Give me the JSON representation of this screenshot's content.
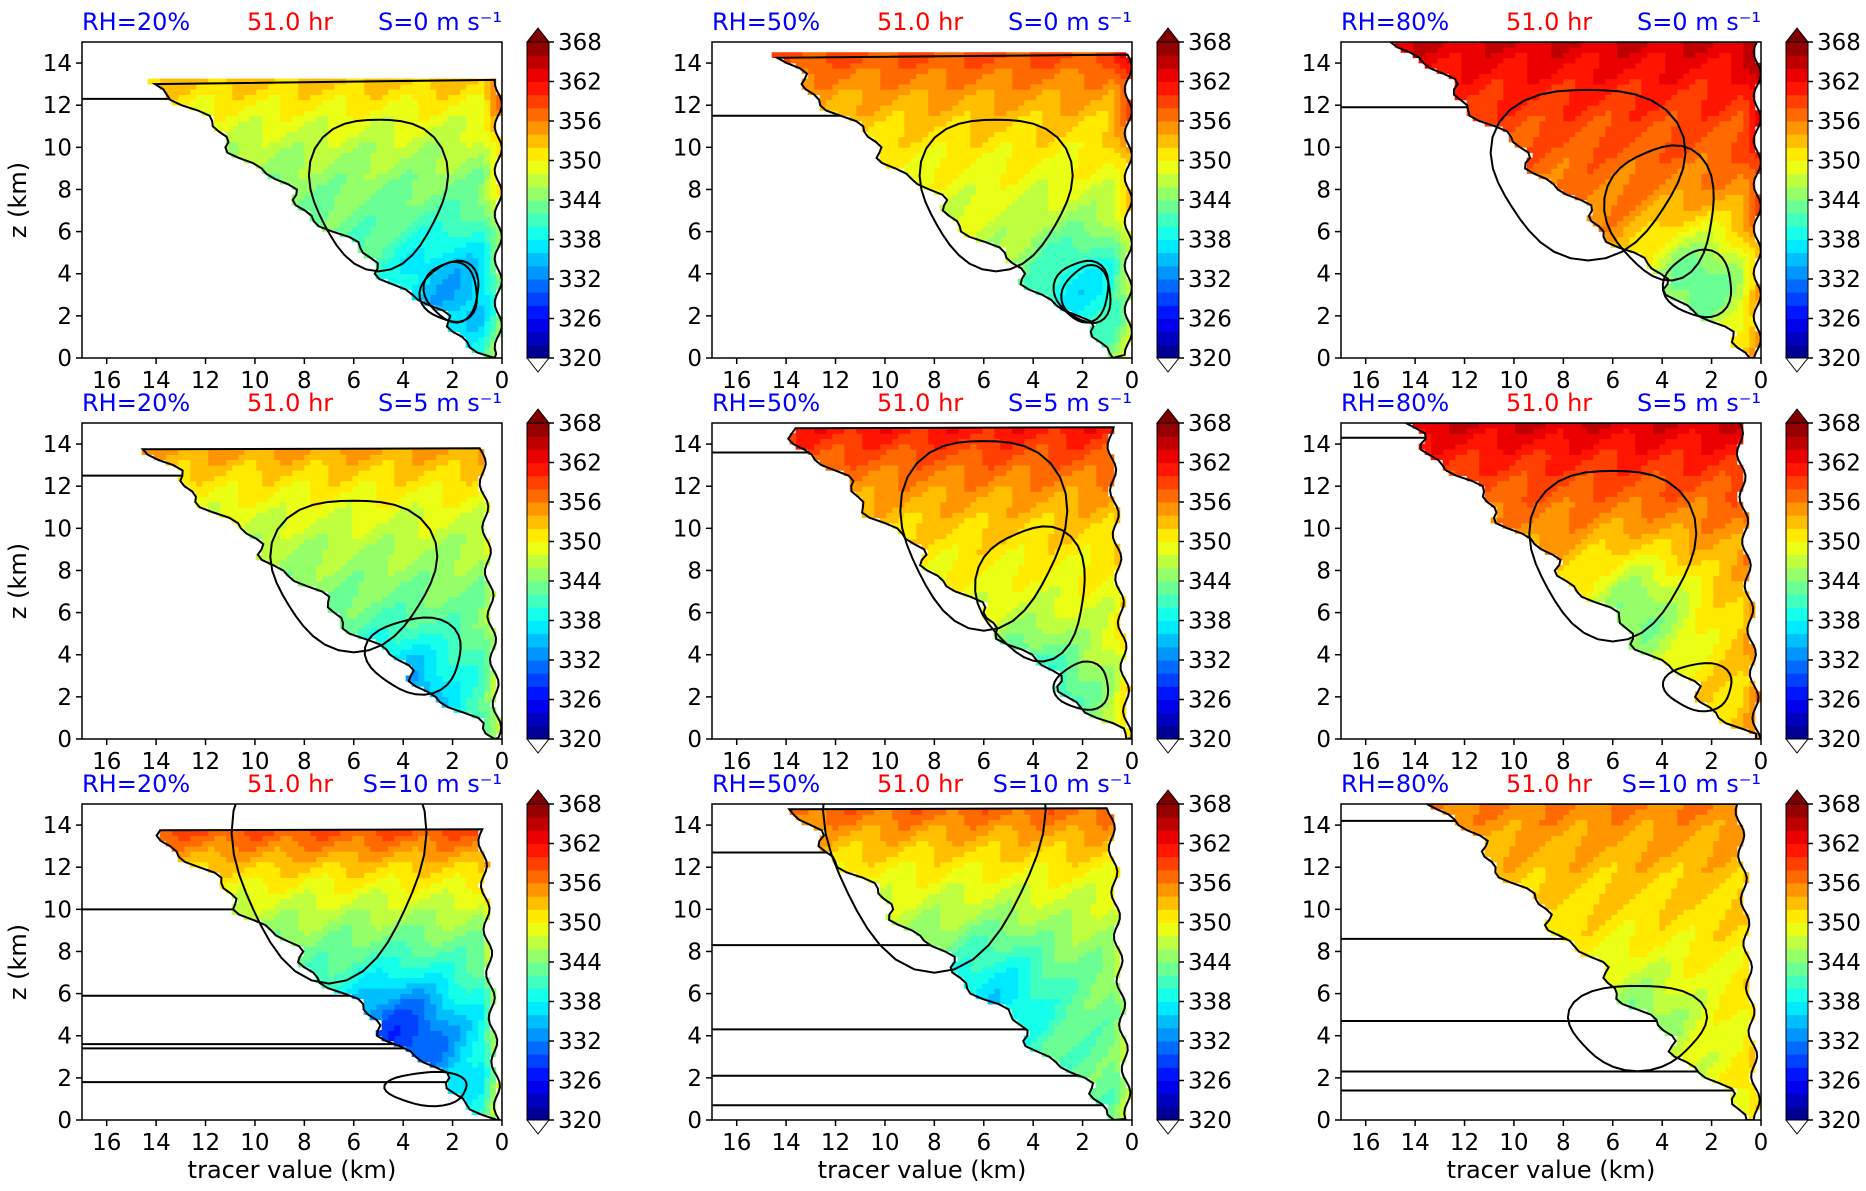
{
  "chart_data": {
    "type": "heatmap",
    "layout": {
      "rows": 3,
      "cols": 3
    },
    "xlabel": "tracer value (km)",
    "ylabel": "z (km)",
    "x_ticks": [
      "16",
      "14",
      "12",
      "10",
      "8",
      "6",
      "4",
      "2",
      "0"
    ],
    "y_ticks": [
      "0",
      "2",
      "4",
      "6",
      "8",
      "10",
      "12",
      "14"
    ],
    "xlim": [
      17,
      0
    ],
    "ylim": [
      0,
      15
    ],
    "x_inverted": true,
    "colorbar": {
      "ticks": [
        "320",
        "326",
        "332",
        "338",
        "344",
        "350",
        "356",
        "362",
        "368"
      ],
      "range": [
        320,
        368
      ],
      "extend": "both",
      "colormap": "jet"
    },
    "time_label": "51.0 hr",
    "colors": {
      "rh_label": "#0000ff",
      "time_label": "#ff0000",
      "shear_label": "#0000ff",
      "contour": "#000000"
    },
    "panels": [
      {
        "row": 0,
        "col": 0,
        "rh_label": "RH=20%",
        "time_label": "51.0 hr",
        "shear_label": "S=0 m s⁻¹",
        "rh": 20,
        "shear": 0,
        "min_tracer": 14.0,
        "base_theta": 342,
        "low_theta": 334,
        "top_theta": 358,
        "core": [
          2.0,
          3.2
        ],
        "cloud_top": 13.2,
        "contours": [
          [
            5.0,
            8.0
          ],
          [
            2.0,
            3.2
          ],
          [
            2.1,
            3.1
          ]
        ],
        "horiz_lines": [
          12.3
        ]
      },
      {
        "row": 0,
        "col": 1,
        "rh_label": "RH=50%",
        "time_label": "51.0 hr",
        "shear_label": "S=0 m s⁻¹",
        "rh": 50,
        "shear": 0,
        "min_tracer": 14.5,
        "base_theta": 347,
        "low_theta": 337,
        "top_theta": 360,
        "core": [
          2.0,
          3.2
        ],
        "cloud_top": 14.4,
        "contours": [
          [
            5.5,
            8.0
          ],
          [
            2.0,
            3.2
          ],
          [
            1.8,
            3.0
          ]
        ],
        "horiz_lines": [
          11.5
        ]
      },
      {
        "row": 0,
        "col": 2,
        "rh_label": "RH=80%",
        "time_label": "51.0 hr",
        "shear_label": "S=0 m s⁻¹",
        "rh": 80,
        "shear": 0,
        "min_tracer": 14.5,
        "base_theta": 355,
        "low_theta": 342,
        "top_theta": 364,
        "core": [
          2.5,
          3.5
        ],
        "cloud_top": 15.0,
        "contours": [
          [
            7.0,
            9.0
          ],
          [
            4.0,
            7.0
          ],
          [
            2.5,
            3.5
          ]
        ],
        "horiz_lines": [
          11.9
        ]
      },
      {
        "row": 1,
        "col": 0,
        "rh_label": "RH=20%",
        "time_label": "51.0 hr",
        "shear_label": "S=5 m s⁻¹",
        "rh": 20,
        "shear": 5,
        "min_tracer": 14.5,
        "base_theta": 343,
        "low_theta": 333,
        "top_theta": 358,
        "core": [
          4.0,
          2.0
        ],
        "cloud_top": 13.8,
        "contours": [
          [
            6.0,
            8.0
          ],
          [
            3.5,
            4.0
          ]
        ],
        "horiz_lines": [
          12.5
        ]
      },
      {
        "row": 1,
        "col": 1,
        "rh_label": "RH=50%",
        "time_label": "51.0 hr",
        "shear_label": "S=5 m s⁻¹",
        "rh": 50,
        "shear": 5,
        "min_tracer": 14.0,
        "base_theta": 348,
        "low_theta": 338,
        "top_theta": 362,
        "core": [
          4.0,
          2.0
        ],
        "cloud_top": 14.8,
        "contours": [
          [
            6.0,
            10.0
          ],
          [
            4.0,
            7.0
          ],
          [
            2.0,
            2.5
          ]
        ],
        "horiz_lines": [
          13.6
        ]
      },
      {
        "row": 1,
        "col": 2,
        "rh_label": "RH=80%",
        "time_label": "51.0 hr",
        "shear_label": "S=5 m s⁻¹",
        "rh": 80,
        "shear": 5,
        "min_tracer": 14.5,
        "base_theta": 352,
        "low_theta": 343,
        "top_theta": 364,
        "core": [
          5.0,
          6.0
        ],
        "cloud_top": 15.0,
        "contours": [
          [
            6.0,
            9.0
          ],
          [
            2.5,
            2.5
          ]
        ],
        "horiz_lines": [
          14.3
        ]
      },
      {
        "row": 2,
        "col": 0,
        "rh_label": "RH=20%",
        "time_label": "51.0 hr",
        "shear_label": "S=10 m s⁻¹",
        "rh": 20,
        "shear": 10,
        "min_tracer": 14.0,
        "base_theta": 340,
        "low_theta": 328,
        "top_theta": 364,
        "core": [
          4.0,
          4.0
        ],
        "cloud_top": 13.8,
        "contours": [
          [
            7.0,
            12.6
          ],
          [
            3.0,
            1.5
          ]
        ],
        "horiz_lines": [
          10.0,
          5.9,
          3.6,
          3.4,
          1.8
        ]
      },
      {
        "row": 2,
        "col": 1,
        "rh_label": "RH=50%",
        "time_label": "51.0 hr",
        "shear_label": "S=10 m s⁻¹",
        "rh": 50,
        "shear": 10,
        "min_tracer": 14.0,
        "base_theta": 343,
        "low_theta": 336,
        "top_theta": 358,
        "core": [
          5.5,
          6.0
        ],
        "cloud_top": 14.8,
        "contours": [
          [
            8.0,
            13.6
          ]
        ],
        "horiz_lines": [
          12.7,
          8.3,
          4.3,
          2.1,
          0.7
        ]
      },
      {
        "row": 2,
        "col": 2,
        "rh_label": "RH=80%",
        "time_label": "51.0 hr",
        "shear_label": "S=10 m s⁻¹",
        "rh": 80,
        "shear": 10,
        "min_tracer": 13.0,
        "base_theta": 350,
        "low_theta": 344,
        "top_theta": 356,
        "core": [
          5.0,
          4.5
        ],
        "cloud_top": 15.0,
        "contours": [
          [
            5.0,
            4.5
          ]
        ],
        "horiz_lines": [
          14.2,
          8.6,
          4.7,
          2.3,
          1.4
        ]
      }
    ]
  }
}
